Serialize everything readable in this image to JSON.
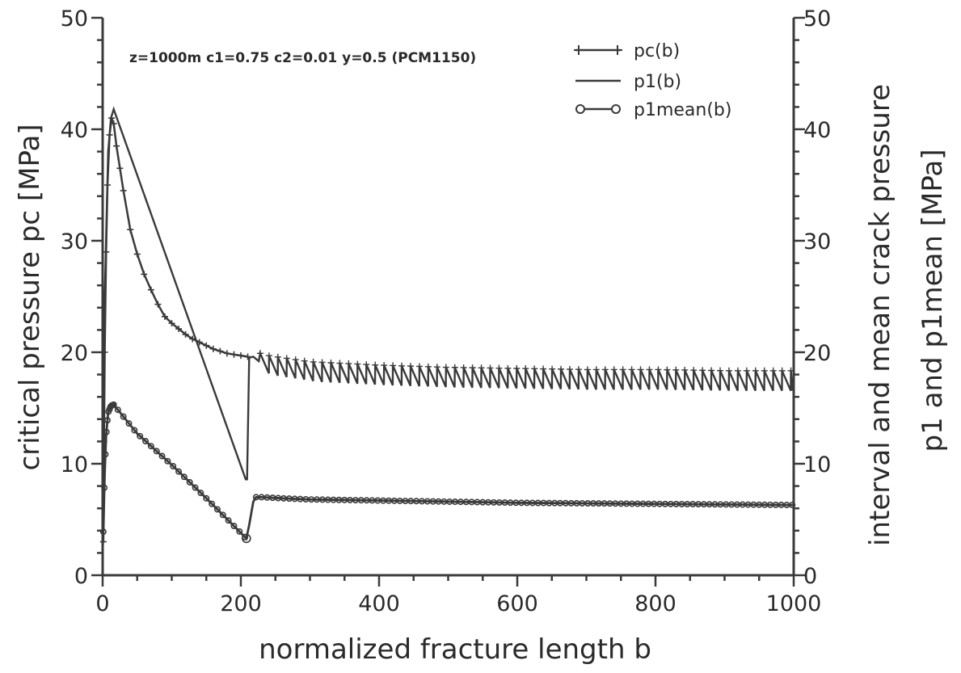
{
  "chart_data": {
    "type": "line",
    "annotation": "z=1000m c1=0.75 c2=0.01 y=0.5 (PCM1150)",
    "xlabel": "normalized fracture length b",
    "ylabel_left": "critical pressure pc [MPa]",
    "ylabel_right_line1": "interval and mean crack pressure",
    "ylabel_right_line2": "p1 and p1mean [MPa]",
    "xlim": [
      0,
      1000
    ],
    "ylim": [
      0,
      50
    ],
    "x_ticks": [
      0,
      200,
      400,
      600,
      800,
      1000
    ],
    "x_tick_labels": [
      "0",
      "200",
      "400",
      "600",
      "800",
      "1000"
    ],
    "y_ticks": [
      0,
      10,
      20,
      30,
      40,
      50
    ],
    "y_tick_labels_left": [
      "0",
      "10",
      "20",
      "30",
      "40",
      "50"
    ],
    "y_tick_labels_right": [
      "0",
      "10",
      "20",
      "30",
      "40",
      "50"
    ],
    "grid": false,
    "legend_position": "top-right",
    "series": [
      {
        "name": "pc(b)",
        "marker": "plus",
        "x": [
          1,
          2,
          3,
          5,
          7,
          10,
          13,
          16,
          20,
          25,
          30,
          40,
          50,
          60,
          70,
          80,
          90,
          100,
          110,
          120,
          130,
          140,
          150,
          160,
          170,
          180,
          190,
          200,
          210
        ],
        "y": [
          3,
          12,
          20,
          29,
          35,
          39.5,
          41,
          40.5,
          38.5,
          36.5,
          34.5,
          31,
          28.8,
          27,
          25.6,
          24.3,
          23.2,
          22.6,
          22.1,
          21.6,
          21.2,
          20.9,
          20.6,
          20.3,
          20.1,
          19.9,
          19.8,
          19.7,
          19.6
        ]
      },
      {
        "name": "p1(b)",
        "marker": "none",
        "x": [
          0,
          3,
          8,
          12,
          16,
          207,
          209,
          212,
          218,
          222,
          226,
          235,
          300,
          400,
          500,
          600,
          700,
          800,
          900,
          1000
        ],
        "y": [
          0,
          25,
          38,
          41,
          41.8,
          8.6,
          8.6,
          19.5,
          19.6,
          19.4,
          19.2,
          19,
          18.4,
          18.1,
          17.9,
          17.8,
          17.7,
          17.7,
          17.6,
          17.6
        ]
      },
      {
        "name": "p1mean(b)",
        "marker": "circle",
        "x": [
          1,
          2,
          3,
          5,
          8,
          12,
          16,
          50,
          100,
          150,
          200,
          208,
          212,
          218,
          222,
          230,
          260,
          300,
          400,
          500,
          600,
          700,
          800,
          900,
          1000
        ],
        "y": [
          3.9,
          6.5,
          9.2,
          12.5,
          14.6,
          15.2,
          15.3,
          12.7,
          9.9,
          6.9,
          3.8,
          3.3,
          4.5,
          6.6,
          7,
          7,
          6.9,
          6.8,
          6.7,
          6.6,
          6.5,
          6.45,
          6.4,
          6.35,
          6.3
        ]
      }
    ]
  }
}
